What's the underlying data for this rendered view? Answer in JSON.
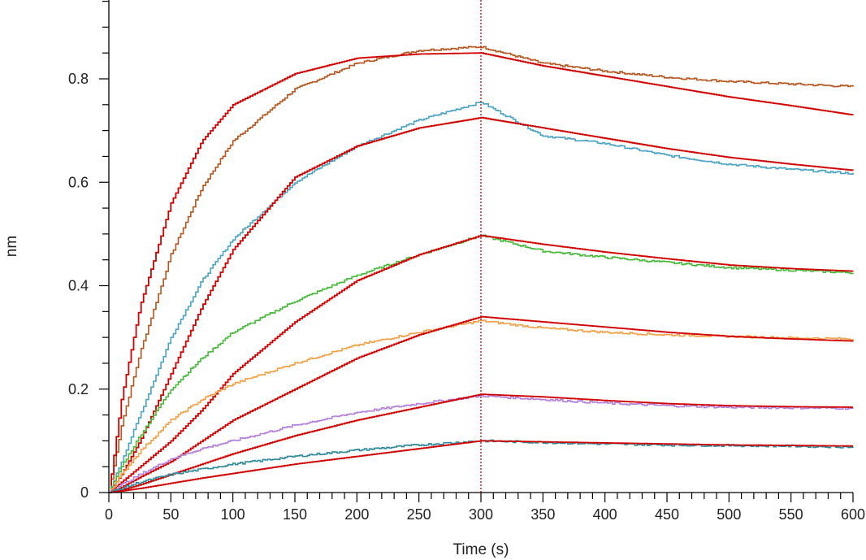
{
  "chart_data": {
    "type": "line",
    "title": "",
    "xlabel": "Time (s)",
    "ylabel": "nm",
    "xlim": [
      0,
      600
    ],
    "ylim": [
      0,
      0.95
    ],
    "x_ticks": [
      0,
      50,
      100,
      150,
      200,
      250,
      300,
      350,
      400,
      450,
      500,
      550,
      600
    ],
    "x_tick_labels": [
      "0",
      "50",
      "100",
      "150",
      "200",
      "250",
      "300",
      "350",
      "400",
      "450",
      "500",
      "550",
      "600"
    ],
    "y_ticks": [
      0,
      0.2,
      0.4,
      0.6,
      0.8
    ],
    "y_tick_labels": [
      "0",
      "0.2",
      "0.4",
      "0.6",
      "0.8"
    ],
    "grid": false,
    "legend": "none",
    "marker_line": {
      "x": 300,
      "color": "#c00000",
      "style": "dotted"
    },
    "series": [
      {
        "kind": "measured",
        "color": "#b5541c",
        "x": [
          0,
          10,
          25,
          50,
          75,
          100,
          150,
          200,
          250,
          300,
          350,
          400,
          450,
          500,
          550,
          600
        ],
        "y": [
          0,
          0.13,
          0.27,
          0.46,
          0.59,
          0.68,
          0.78,
          0.83,
          0.855,
          0.862,
          0.83,
          0.815,
          0.803,
          0.795,
          0.79,
          0.785
        ]
      },
      {
        "kind": "fit",
        "color": "#d00000",
        "x": [
          0,
          10,
          25,
          50,
          75,
          100,
          150,
          200,
          250,
          300,
          350,
          400,
          450,
          500,
          550,
          600
        ],
        "y": [
          0,
          0.18,
          0.36,
          0.56,
          0.68,
          0.75,
          0.81,
          0.84,
          0.848,
          0.85,
          0.825,
          0.805,
          0.785,
          0.765,
          0.748,
          0.73
        ]
      },
      {
        "kind": "measured",
        "color": "#4aa3c2",
        "x": [
          0,
          10,
          25,
          50,
          75,
          100,
          150,
          200,
          250,
          300,
          350,
          400,
          450,
          500,
          550,
          600
        ],
        "y": [
          0,
          0.06,
          0.15,
          0.3,
          0.41,
          0.49,
          0.6,
          0.67,
          0.72,
          0.755,
          0.69,
          0.675,
          0.652,
          0.635,
          0.625,
          0.617
        ]
      },
      {
        "kind": "fit",
        "color": "#d00000",
        "x": [
          0,
          10,
          25,
          50,
          75,
          100,
          150,
          200,
          250,
          300,
          350,
          400,
          450,
          500,
          550,
          600
        ],
        "y": [
          0,
          0.035,
          0.1,
          0.23,
          0.36,
          0.47,
          0.61,
          0.67,
          0.705,
          0.725,
          0.705,
          0.685,
          0.665,
          0.648,
          0.635,
          0.623
        ]
      },
      {
        "kind": "measured",
        "color": "#45b838",
        "x": [
          0,
          10,
          25,
          50,
          75,
          100,
          150,
          200,
          250,
          300,
          350,
          400,
          450,
          500,
          550,
          600
        ],
        "y": [
          0,
          0.05,
          0.11,
          0.2,
          0.26,
          0.31,
          0.37,
          0.42,
          0.46,
          0.497,
          0.467,
          0.455,
          0.445,
          0.435,
          0.43,
          0.425
        ]
      },
      {
        "kind": "fit",
        "color": "#d00000",
        "x": [
          0,
          10,
          25,
          50,
          75,
          100,
          150,
          200,
          250,
          300,
          350,
          400,
          450,
          500,
          550,
          600
        ],
        "y": [
          0,
          0.02,
          0.05,
          0.1,
          0.16,
          0.23,
          0.33,
          0.41,
          0.46,
          0.497,
          0.48,
          0.465,
          0.452,
          0.44,
          0.433,
          0.428
        ]
      },
      {
        "kind": "measured",
        "color": "#f2a148",
        "x": [
          0,
          10,
          25,
          50,
          75,
          100,
          150,
          200,
          250,
          300,
          350,
          400,
          450,
          500,
          550,
          600
        ],
        "y": [
          0,
          0.035,
          0.08,
          0.14,
          0.18,
          0.21,
          0.25,
          0.285,
          0.31,
          0.332,
          0.318,
          0.31,
          0.305,
          0.302,
          0.299,
          0.297
        ]
      },
      {
        "kind": "fit",
        "color": "#d00000",
        "x": [
          0,
          10,
          25,
          50,
          75,
          100,
          150,
          200,
          250,
          300,
          350,
          400,
          450,
          500,
          550,
          600
        ],
        "y": [
          0,
          0.01,
          0.03,
          0.06,
          0.1,
          0.14,
          0.2,
          0.26,
          0.305,
          0.34,
          0.33,
          0.32,
          0.31,
          0.302,
          0.297,
          0.293
        ]
      },
      {
        "kind": "measured",
        "color": "#b27fdb",
        "x": [
          0,
          10,
          25,
          50,
          75,
          100,
          150,
          200,
          250,
          300,
          350,
          400,
          450,
          500,
          550,
          600
        ],
        "y": [
          0,
          0.015,
          0.035,
          0.065,
          0.085,
          0.1,
          0.13,
          0.155,
          0.172,
          0.187,
          0.18,
          0.173,
          0.168,
          0.165,
          0.164,
          0.163
        ]
      },
      {
        "kind": "fit",
        "color": "#d00000",
        "x": [
          0,
          10,
          25,
          50,
          75,
          100,
          150,
          200,
          250,
          300,
          350,
          400,
          450,
          500,
          550,
          600
        ],
        "y": [
          0,
          0.005,
          0.015,
          0.035,
          0.055,
          0.075,
          0.11,
          0.14,
          0.165,
          0.19,
          0.185,
          0.178,
          0.172,
          0.168,
          0.166,
          0.165
        ]
      },
      {
        "kind": "measured",
        "color": "#2e8a9a",
        "x": [
          0,
          10,
          25,
          50,
          75,
          100,
          150,
          200,
          250,
          300,
          350,
          400,
          450,
          500,
          550,
          600
        ],
        "y": [
          0,
          0.008,
          0.02,
          0.035,
          0.045,
          0.055,
          0.07,
          0.082,
          0.092,
          0.1,
          0.097,
          0.094,
          0.092,
          0.091,
          0.09,
          0.088
        ]
      },
      {
        "kind": "fit",
        "color": "#d00000",
        "x": [
          0,
          10,
          25,
          50,
          75,
          100,
          150,
          200,
          250,
          300,
          350,
          400,
          450,
          500,
          550,
          600
        ],
        "y": [
          0,
          0.003,
          0.008,
          0.018,
          0.028,
          0.037,
          0.055,
          0.07,
          0.085,
          0.1,
          0.098,
          0.096,
          0.094,
          0.092,
          0.091,
          0.09
        ]
      }
    ]
  }
}
